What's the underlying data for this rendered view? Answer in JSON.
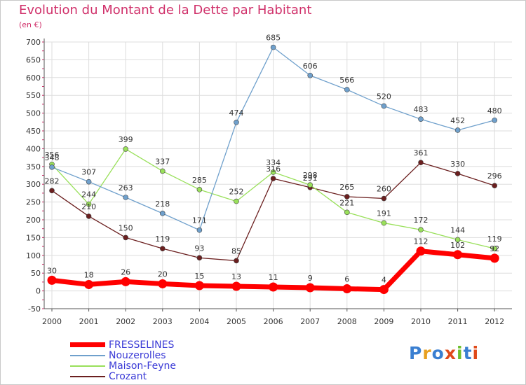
{
  "title": "Evolution du Montant de la Dette par Habitant",
  "unit": "(en €)",
  "logo": {
    "text": "Proxiti",
    "colors": [
      "#3a7fd1",
      "#e8a020",
      "#3a7fd1",
      "#e04a1a",
      "#6cbf2a",
      "#3a7fd1",
      "#e04a1a"
    ]
  },
  "chart_data": {
    "type": "line",
    "title": "Evolution du Montant de la Dette par Habitant",
    "subtitle": "(en €)",
    "x": [
      "2000",
      "2001",
      "2002",
      "2003",
      "2004",
      "2005",
      "2006",
      "2007",
      "2008",
      "2009",
      "2010",
      "2011",
      "2012"
    ],
    "ylim": [
      -50,
      700
    ],
    "yticks": [
      -50,
      0,
      50,
      100,
      150,
      200,
      250,
      300,
      350,
      400,
      450,
      500,
      550,
      600,
      650,
      700
    ],
    "grid": true,
    "legend_position": "bottom-left",
    "series": [
      {
        "name": "FRESSELINES",
        "color": "#ff0000",
        "values": [
          30,
          18,
          26,
          20,
          15,
          13,
          11,
          9,
          6,
          4,
          112,
          102,
          92
        ],
        "labels": [
          30,
          18,
          26,
          20,
          15,
          13,
          11,
          9,
          6,
          4,
          112,
          102,
          92
        ],
        "width": 7,
        "marker": 6
      },
      {
        "name": "Nouzerolles",
        "color": "#6fa0cc",
        "values": [
          348,
          307,
          263,
          218,
          171,
          474,
          685,
          606,
          566,
          520,
          483,
          452,
          480
        ],
        "labels": [
          348,
          307,
          263,
          218,
          171,
          474,
          685,
          606,
          566,
          520,
          483,
          452,
          480
        ],
        "width": 1.3,
        "marker": 3.5
      },
      {
        "name": "Maison-Feyne",
        "color": "#99e05a",
        "values": [
          356,
          244,
          399,
          337,
          285,
          252,
          334,
          298,
          221,
          191,
          172,
          144,
          119
        ],
        "labels": [
          356,
          244,
          399,
          337,
          285,
          252,
          334,
          298,
          221,
          191,
          172,
          144,
          119
        ],
        "width": 1.3,
        "marker": 3.5
      },
      {
        "name": "Crozant",
        "color": "#6b1f1f",
        "values": [
          282,
          210,
          150,
          119,
          93,
          85,
          316,
          291,
          265,
          260,
          361,
          330,
          296
        ],
        "labels": [
          282,
          210,
          150,
          119,
          93,
          85,
          316,
          291,
          265,
          260,
          361,
          330,
          296
        ],
        "width": 1.3,
        "marker": 3.5
      }
    ]
  }
}
